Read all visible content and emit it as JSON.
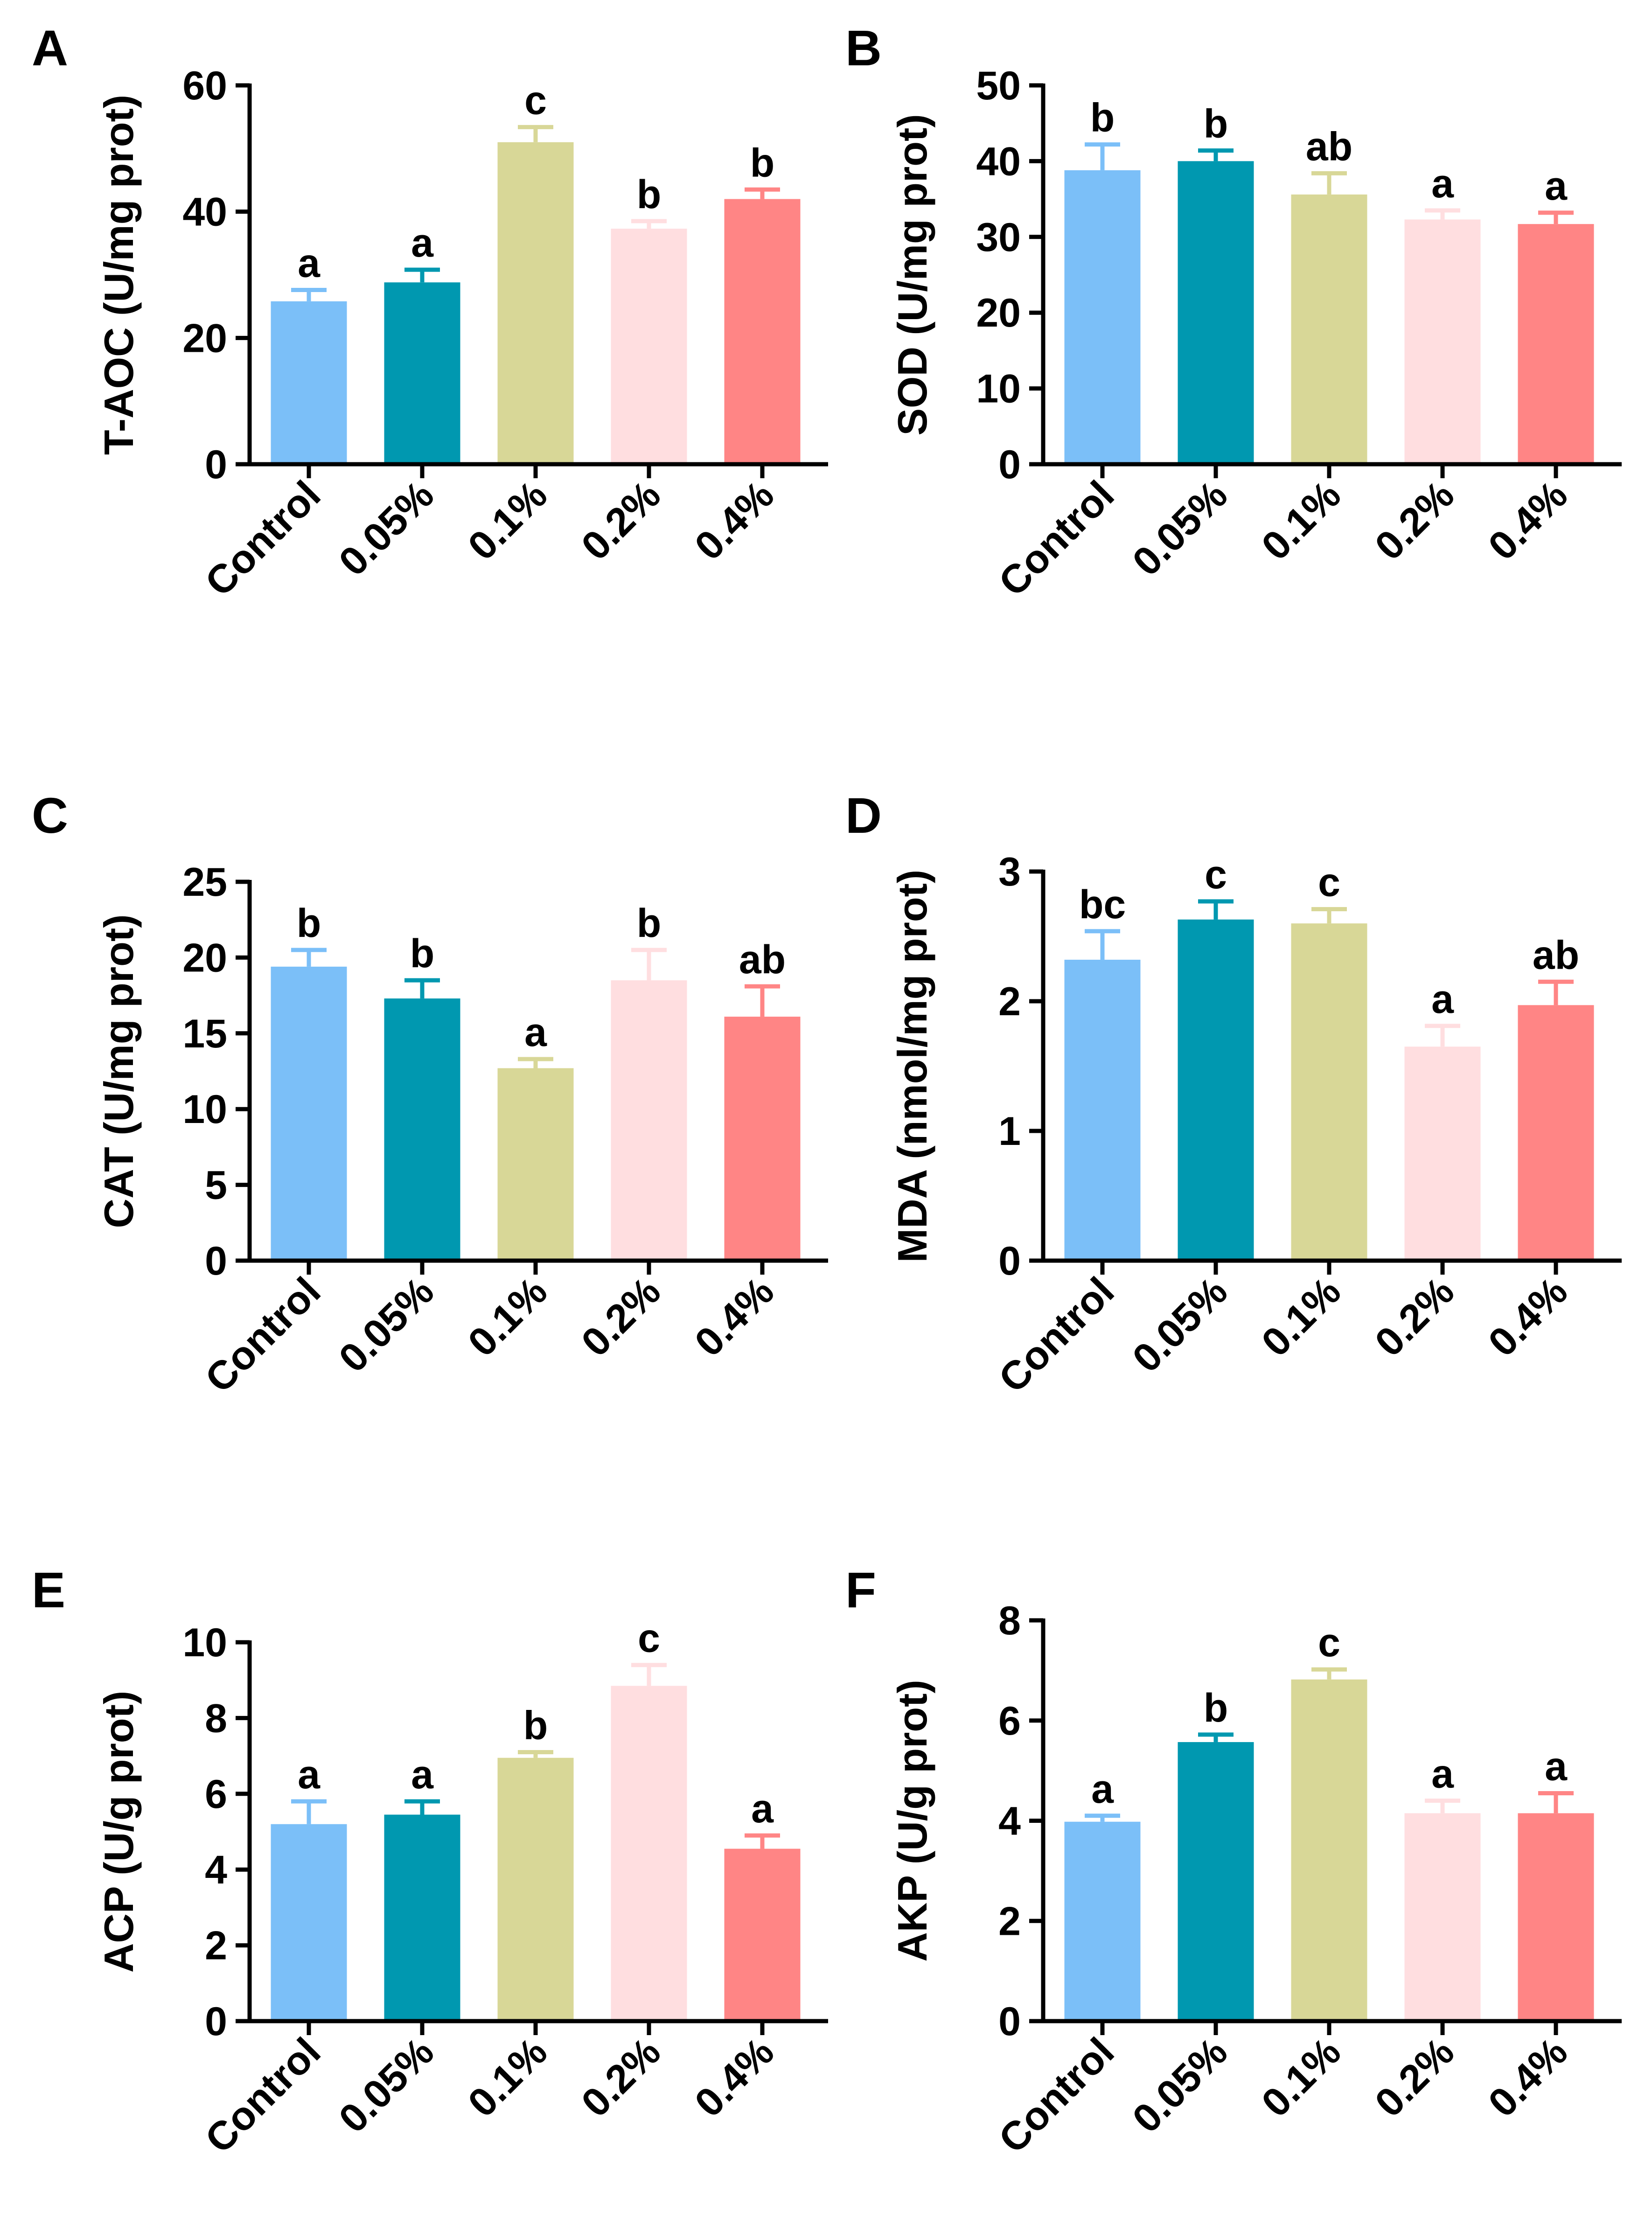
{
  "figure": {
    "background": "#ffffff"
  },
  "colors": [
    "#7bbff8",
    "#0098b0",
    "#d8d797",
    "#ffdee0",
    "#ff8585"
  ],
  "chart_data": [
    {
      "id": "A",
      "panel_label": "A",
      "type": "bar",
      "ylabel": "T-AOC (U/mg prot)",
      "categories": [
        "Control",
        "0.05%",
        "0.1%",
        "0.2%",
        "0.4%"
      ],
      "values": [
        25.8,
        28.8,
        51.0,
        37.3,
        42.0
      ],
      "errors": [
        1.8,
        2.0,
        2.4,
        1.2,
        1.5
      ],
      "letters": [
        "a",
        "a",
        "c",
        "b",
        "b"
      ],
      "ylim": [
        0,
        60
      ],
      "yticks": [
        0,
        20,
        40,
        60
      ],
      "ytick_labels": [
        "0",
        "20",
        "40",
        "60"
      ]
    },
    {
      "id": "B",
      "panel_label": "B",
      "type": "bar",
      "ylabel": "SOD (U/mg prot)",
      "categories": [
        "Control",
        "0.05%",
        "0.1%",
        "0.2%",
        "0.4%"
      ],
      "values": [
        38.8,
        40.0,
        35.6,
        32.3,
        31.7
      ],
      "errors": [
        3.4,
        1.4,
        2.8,
        1.2,
        1.5
      ],
      "letters": [
        "b",
        "b",
        "ab",
        "a",
        "a"
      ],
      "ylim": [
        0,
        50
      ],
      "yticks": [
        0,
        10,
        20,
        30,
        40,
        50
      ],
      "ytick_labels": [
        "0",
        "10",
        "20",
        "30",
        "40",
        "50"
      ]
    },
    {
      "id": "C",
      "panel_label": "C",
      "type": "bar",
      "ylabel": "CAT (U/mg prot)",
      "categories": [
        "Control",
        "0.05%",
        "0.1%",
        "0.2%",
        "0.4%"
      ],
      "values": [
        19.4,
        17.3,
        12.7,
        18.5,
        16.1
      ],
      "errors": [
        1.1,
        1.2,
        0.6,
        2.0,
        2.0
      ],
      "letters": [
        "b",
        "b",
        "a",
        "b",
        "ab"
      ],
      "ylim": [
        0,
        25
      ],
      "yticks": [
        0,
        5,
        10,
        15,
        20,
        25
      ],
      "ytick_labels": [
        "0",
        "5",
        "10",
        "15",
        "20",
        "25"
      ]
    },
    {
      "id": "D",
      "panel_label": "D",
      "type": "bar",
      "ylabel": "MDA (nmol/mg prot)",
      "categories": [
        "Control",
        "0.05%",
        "0.1%",
        "0.2%",
        "0.4%"
      ],
      "values": [
        2.32,
        2.63,
        2.6,
        1.65,
        1.97
      ],
      "errors": [
        0.22,
        0.14,
        0.11,
        0.16,
        0.18
      ],
      "letters": [
        "bc",
        "c",
        "c",
        "a",
        "ab"
      ],
      "ylim": [
        0,
        3
      ],
      "yticks": [
        0,
        1,
        2,
        3
      ],
      "ytick_labels": [
        "0",
        "1",
        "2",
        "3"
      ]
    },
    {
      "id": "E",
      "panel_label": "E",
      "type": "bar",
      "ylabel": "ACP (U/g prot)",
      "categories": [
        "Control",
        "0.05%",
        "0.1%",
        "0.2%",
        "0.4%"
      ],
      "values": [
        5.2,
        5.45,
        6.95,
        8.85,
        4.55
      ],
      "errors": [
        0.6,
        0.35,
        0.15,
        0.55,
        0.35
      ],
      "letters": [
        "a",
        "a",
        "b",
        "c",
        "a"
      ],
      "ylim": [
        0,
        10
      ],
      "yticks": [
        0,
        2,
        4,
        6,
        8,
        10
      ],
      "ytick_labels": [
        "0",
        "2",
        "4",
        "6",
        "8",
        "10"
      ]
    },
    {
      "id": "F",
      "panel_label": "F",
      "type": "bar",
      "ylabel": "AKP (U/g prot)",
      "categories": [
        "Control",
        "0.05%",
        "0.1%",
        "0.2%",
        "0.4%"
      ],
      "values": [
        3.98,
        5.57,
        6.82,
        4.15,
        4.15
      ],
      "errors": [
        0.12,
        0.15,
        0.2,
        0.25,
        0.4
      ],
      "letters": [
        "a",
        "b",
        "c",
        "a",
        "a"
      ],
      "ylim": [
        0,
        8
      ],
      "yticks": [
        0,
        2,
        4,
        6,
        8
      ],
      "ytick_labels": [
        "0",
        "2",
        "4",
        "6",
        "8"
      ]
    }
  ]
}
